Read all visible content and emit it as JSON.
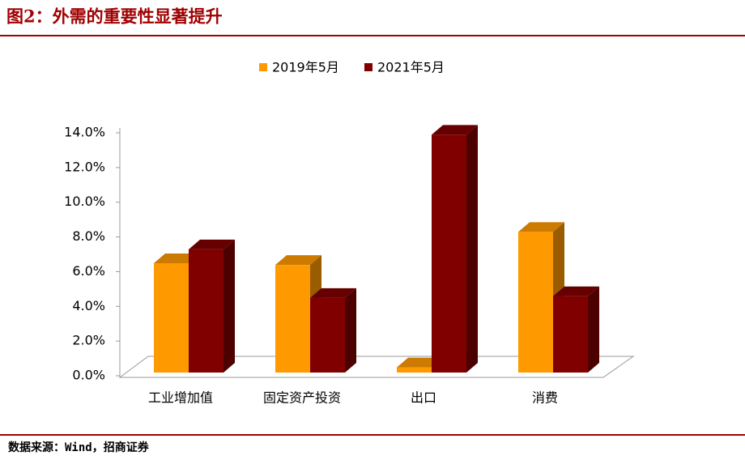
{
  "chart_data": {
    "type": "bar3d",
    "title": "图2：外需的重要性显著提升",
    "source": "数据来源：Wind，招商证券",
    "categories": [
      "工业增加值",
      "固定资产投资",
      "出口",
      "消费"
    ],
    "series": [
      {
        "name": "2019年5月",
        "color": "#ff9900",
        "values": [
          6.3,
          6.2,
          0.3,
          8.1
        ]
      },
      {
        "name": "2021年5月",
        "color": "#800000",
        "values": [
          7.1,
          4.3,
          13.7,
          4.4
        ]
      }
    ],
    "ylim": [
      0,
      14
    ],
    "yticks": [
      {
        "value": 0,
        "label": "0.0%"
      },
      {
        "value": 2,
        "label": "2.0%"
      },
      {
        "value": 4,
        "label": "4.0%"
      },
      {
        "value": 6,
        "label": "6.0%"
      },
      {
        "value": 8,
        "label": "8.0%"
      },
      {
        "value": 10,
        "label": "10.0%"
      },
      {
        "value": 12,
        "label": "12.0%"
      },
      {
        "value": 14,
        "label": "14.0%"
      }
    ],
    "legend": "top"
  }
}
